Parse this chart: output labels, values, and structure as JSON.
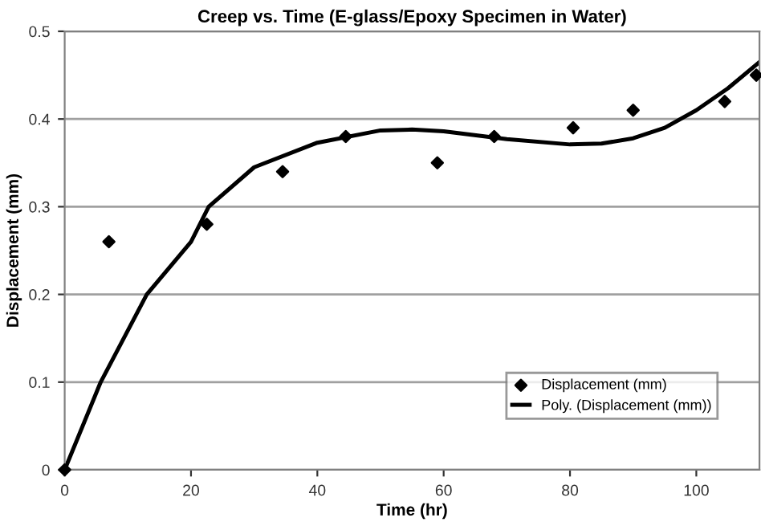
{
  "chart_data": {
    "type": "scatter",
    "title": "Creep vs. Time (E-glass/Epoxy Specimen in Water)",
    "xlabel": "Time (hr)",
    "ylabel": "Displacement (mm)",
    "series": [
      {
        "name": "Displacement (mm)",
        "color": "#000000",
        "marker": "diamond",
        "x": [
          0,
          7,
          22.5,
          34.5,
          44.5,
          59,
          68,
          80.5,
          90,
          104.5,
          109.5
        ],
        "values": [
          0,
          0.26,
          0.28,
          0.34,
          0.38,
          0.35,
          0.38,
          0.39,
          0.41,
          0.42,
          0.45
        ]
      },
      {
        "name": "Poly. (Displacement (mm))",
        "type": "line",
        "color": "#000000",
        "marker": "none",
        "x": [
          0,
          5.7,
          13,
          20,
          22.8,
          30,
          40,
          50,
          55,
          60,
          70,
          80,
          85,
          90,
          95,
          100,
          105,
          110
        ],
        "values": [
          0,
          0.1,
          0.2,
          0.26,
          0.3,
          0.345,
          0.373,
          0.387,
          0.388,
          0.386,
          0.377,
          0.371,
          0.372,
          0.378,
          0.39,
          0.41,
          0.435,
          0.465
        ]
      }
    ],
    "xlim": [
      0,
      110
    ],
    "xticks": [
      0,
      20,
      40,
      60,
      80,
      100
    ],
    "ylim": [
      0,
      0.5
    ],
    "yticks": [
      0,
      0.1,
      0.2,
      0.3,
      0.4,
      0.5
    ],
    "grid": "y",
    "legend": "bottom right"
  }
}
